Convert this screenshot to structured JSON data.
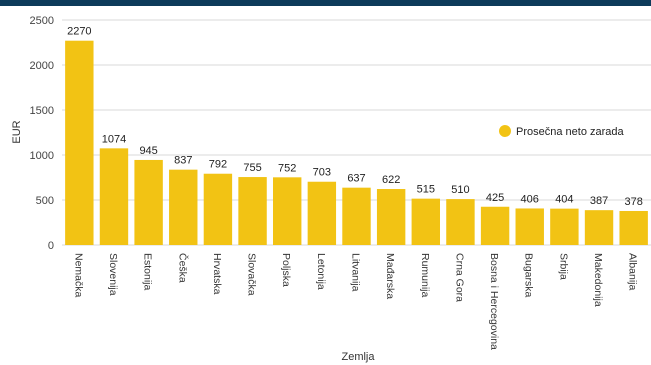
{
  "chart_data": {
    "type": "bar",
    "categories": [
      "Nemačka",
      "Slovenija",
      "Estonija",
      "Češka",
      "Hrvatska",
      "Slovačka",
      "Poljska",
      "Letonija",
      "Litvanija",
      "Mađarska",
      "Rumunija",
      "Crna Gora",
      "Bosna i Hercegovina",
      "Bugarska",
      "Srbija",
      "Makedonija",
      "Albanija"
    ],
    "series": [
      {
        "name": "Prosečna neto zarada",
        "values": [
          2270,
          1074,
          945,
          837,
          792,
          755,
          752,
          703,
          637,
          622,
          515,
          510,
          425,
          406,
          404,
          387,
          378
        ]
      }
    ],
    "xlabel": "Zemlja",
    "ylabel": "EUR",
    "ylim": [
      0,
      2500
    ],
    "yticks": [
      0,
      500,
      1000,
      1500,
      2000,
      2500
    ],
    "grid": true,
    "legend": "right",
    "colors": {
      "bar": "#f2c314",
      "topbar": "#0d3b5a",
      "grid": "#d9d9d9"
    }
  }
}
